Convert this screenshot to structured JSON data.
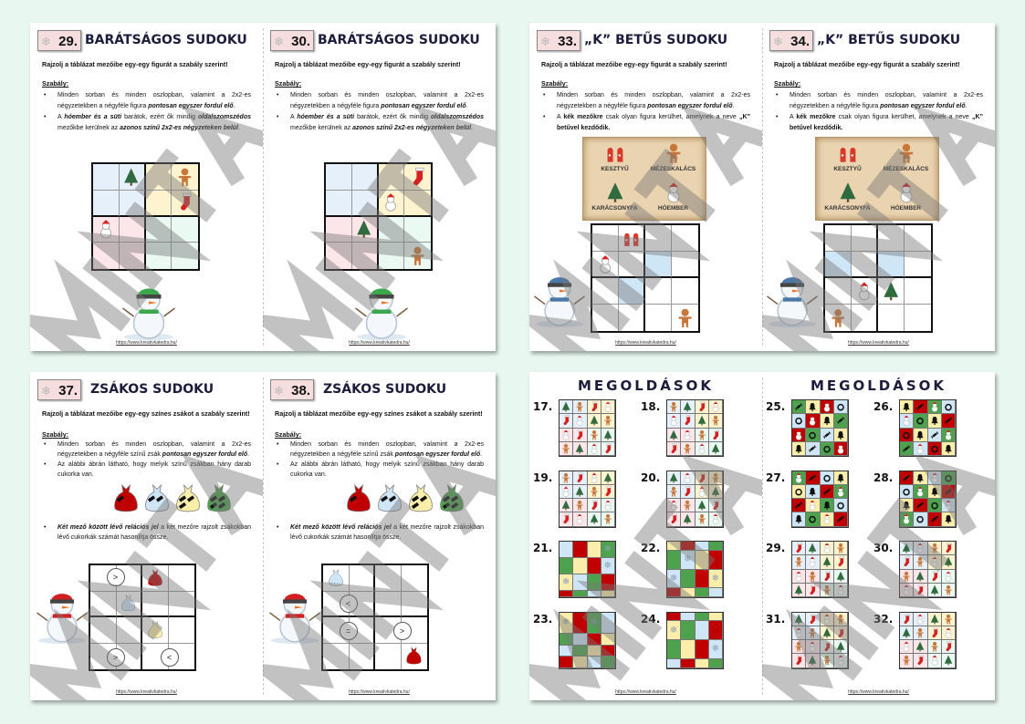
{
  "watermark": "MINTA",
  "url": "https://www.kreativkatedra.hu/",
  "colors": {
    "blue": "#cfe6f7",
    "yellow": "#fbeeaa",
    "red": "#c00000",
    "green": "#4ea24e",
    "qblue": "#e6f0fb",
    "qyellow": "#fdf3cf",
    "qpink": "#fde6ea",
    "qgreen": "#eafaf2",
    "background": "#e9f7f1"
  },
  "pages": [
    {
      "number": "29.",
      "title": "BARÁTSÁGOS SUDOKU",
      "type": "friendly",
      "intro": "Rajzolj a táblázat mezőibe egy-egy figurát a szabály szerint!",
      "rule_heading": "Szabály:",
      "bullets": [
        [
          {
            "t": "Minden sorban és minden oszlopban, valamint a 2x2-es négyzetekben a négyféle figura "
          },
          {
            "t": "pontosan egyszer fordul elő",
            "b": 1,
            "i": 1
          },
          {
            "t": "."
          }
        ],
        [
          {
            "t": "A "
          },
          {
            "t": "hóember és a süti",
            "b": 1,
            "i": 1
          },
          {
            "t": " barátok, ezért ők mindig "
          },
          {
            "t": "oldalszomszédos",
            "b": 1,
            "i": 1
          },
          {
            "t": " mezőkbe kerülnek az "
          },
          {
            "t": "azonos színű 2x2-es négyzeteken belül",
            "b": 1,
            "i": 1
          },
          {
            "t": "."
          }
        ]
      ],
      "cells": [
        "",
        "tree",
        "",
        "gingerbread",
        "",
        "",
        "",
        "stocking",
        "snowman",
        "",
        "",
        "",
        "",
        "",
        "",
        ""
      ]
    },
    {
      "number": "30.",
      "title": "BARÁTSÁGOS SUDOKU",
      "type": "friendly",
      "intro": "Rajzolj a táblázat mezőibe egy-egy figurát a szabály szerint!",
      "rule_heading": "Szabály:",
      "bullets": [
        [
          {
            "t": "Minden sorban és minden oszlopban, valamint a 2x2-es négyzetekben a négyféle figura "
          },
          {
            "t": "pontosan egyszer fordul elő",
            "b": 1,
            "i": 1
          },
          {
            "t": "."
          }
        ],
        [
          {
            "t": "A "
          },
          {
            "t": "hóember és a süti",
            "b": 1,
            "i": 1
          },
          {
            "t": " barátok, ezért ők mindig "
          },
          {
            "t": "oldalszomszédos",
            "b": 1,
            "i": 1
          },
          {
            "t": " mezőkbe kerülnek az "
          },
          {
            "t": "azonos színű 2x2-es négyzeteken belül",
            "b": 1,
            "i": 1
          },
          {
            "t": "."
          }
        ]
      ],
      "cells": [
        "",
        "",
        "",
        "stocking",
        "",
        "",
        "snowman",
        "",
        "",
        "tree",
        "",
        "",
        "",
        "",
        "",
        "gingerbread"
      ]
    },
    {
      "number": "33.",
      "title": "„K” BETŰS SUDOKU",
      "type": "k",
      "intro": "Rajzolj a táblázat mezőibe egy-egy figurát a szabály szerint!",
      "rule_heading": "Szabály:",
      "bullets": [
        [
          {
            "t": "Minden sorban és minden oszlopban, valamint a 2x2-es négyzetekben a négyféle figura "
          },
          {
            "t": "pontosan egyszer fordul elő",
            "b": 1,
            "i": 1
          },
          {
            "t": "."
          }
        ],
        [
          {
            "t": "A "
          },
          {
            "t": "kék mezőkre",
            "b": 1
          },
          {
            "t": " csak olyan figura kerülhet, amelynek a neve "
          },
          {
            "t": "„K”",
            "b": 1
          },
          {
            "t": " "
          },
          {
            "t": "betűvel kezdődik.",
            "b": 1
          }
        ]
      ],
      "legend": [
        {
          "icon": "mitten",
          "label": "KESZTYŰ"
        },
        {
          "icon": "gingerbread",
          "label": "MÉZESKALÁCS"
        },
        {
          "icon": "tree",
          "label": "KARÁCSONYFA"
        },
        {
          "icon": "snowman",
          "label": "HÓEMBER"
        }
      ],
      "blue_cells": [
        6,
        9
      ],
      "cells": [
        "",
        "mitten",
        "",
        "",
        "snowman",
        "",
        "",
        "",
        "",
        "",
        "",
        "",
        "",
        "",
        "",
        "gingerbread"
      ]
    },
    {
      "number": "34.",
      "title": "„K” BETŰS SUDOKU",
      "type": "k",
      "intro": "Rajzolj a táblázat mezőibe egy-egy figurát a szabály szerint!",
      "rule_heading": "Szabály:",
      "bullets": [
        [
          {
            "t": "Minden sorban és minden oszlopban, valamint a 2x2-es négyzetekben a négyféle figura "
          },
          {
            "t": "pontosan egyszer fordul elő",
            "b": 1,
            "i": 1
          },
          {
            "t": "."
          }
        ],
        [
          {
            "t": "A "
          },
          {
            "t": "kék mezőkre",
            "b": 1
          },
          {
            "t": " csak olyan figura kerülhet, amelynek a neve "
          },
          {
            "t": "„K”",
            "b": 1
          },
          {
            "t": " "
          },
          {
            "t": "betűvel kezdődik.",
            "b": 1
          }
        ]
      ],
      "legend": [
        {
          "icon": "mitten",
          "label": "KESZTYŰ"
        },
        {
          "icon": "gingerbread",
          "label": "MÉZESKALÁCS"
        },
        {
          "icon": "tree",
          "label": "KARÁCSONYFA"
        },
        {
          "icon": "snowman",
          "label": "HÓEMBER"
        }
      ],
      "blue_cells": [
        4,
        6
      ],
      "cells": [
        "",
        "",
        "",
        "",
        "",
        "",
        "",
        "",
        "",
        "snowman",
        "tree",
        "",
        "gingerbread",
        "",
        "",
        ""
      ]
    },
    {
      "number": "37.",
      "title": "ZSÁKOS SUDOKU",
      "type": "bags",
      "intro": "Rajzolj a táblázat mezőibe egy-egy színes zsákot a szabály szerint!",
      "rule_heading": "Szabály:",
      "bullets": [
        [
          {
            "t": "Minden sorban és minden oszlopban, valamint a 2x2-es négyzetekben a négyféle színű zsák "
          },
          {
            "t": "pontosan egyszer fordul elő",
            "b": 1,
            "i": 1
          },
          {
            "t": "."
          }
        ],
        [
          {
            "t": "Az alábbi ábrán látható, hogy melyik színű zsákban hány darab cukorka van."
          }
        ],
        [
          {
            "t": "Két mező között lévő relációs jel",
            "b": 1,
            "i": 1
          },
          {
            "t": " a két mezőre rajzolt zsákokban lévő cukorkák számát hasonlítja össze."
          }
        ]
      ],
      "bag_counts": [
        {
          "color": "red",
          "candies": 1
        },
        {
          "color": "blue",
          "candies": 2
        },
        {
          "color": "yellow",
          "candies": 3
        },
        {
          "color": "green",
          "candies": 4
        }
      ],
      "cells": [
        "",
        "",
        "bag-red",
        "",
        "",
        "bag-blue",
        "",
        "",
        "",
        "",
        "bag-yellow",
        "",
        "",
        "",
        "",
        ""
      ],
      "relations": [
        {
          "row": 0,
          "between_cols": [
            0,
            1
          ],
          "sign": ">"
        },
        {
          "row": 3,
          "between_cols": [
            0,
            1
          ],
          "sign": ">"
        },
        {
          "row": 3,
          "between_cols": [
            2,
            3
          ],
          "sign": "<"
        }
      ]
    },
    {
      "number": "38.",
      "title": "ZSÁKOS SUDOKU",
      "type": "bags",
      "intro": "Rajzolj a táblázat mezőibe egy-egy színes zsákot a szabály szerint!",
      "rule_heading": "Szabály:",
      "bullets": [
        [
          {
            "t": "Minden sorban és minden oszlopban, valamint a 2x2-es négyzetekben a négyféle színű zsák "
          },
          {
            "t": "pontosan egyszer fordul elő",
            "b": 1,
            "i": 1
          },
          {
            "t": "."
          }
        ],
        [
          {
            "t": "Az alábbi ábrán látható, hogy melyik színű zsákban hány darab cukorka van."
          }
        ],
        [
          {
            "t": "Két mező között lévő relációs jel",
            "b": 1,
            "i": 1
          },
          {
            "t": " a két mezőre rajzolt zsákokban lévő cukorkák számát hasonlítja össze."
          }
        ]
      ],
      "bag_counts": [
        {
          "color": "red",
          "candies": 1
        },
        {
          "color": "blue",
          "candies": 2
        },
        {
          "color": "yellow",
          "candies": 3
        },
        {
          "color": "green",
          "candies": 4
        }
      ],
      "cells": [
        "bag-blue",
        "",
        "",
        "",
        "",
        "",
        "",
        "",
        "",
        "",
        "",
        "",
        "",
        "",
        "",
        "bag-red"
      ],
      "relations": [
        {
          "row": 1,
          "between_cols": [
            0,
            1
          ],
          "sign": "<"
        },
        {
          "row": 2,
          "between_cols": [
            0,
            1
          ],
          "sign": "="
        },
        {
          "row": 2,
          "between_cols": [
            2,
            3
          ],
          "sign": ">"
        }
      ]
    }
  ],
  "solutions": [
    {
      "title": "MEGOLDÁSOK",
      "items": [
        {
          "label": "17.",
          "kind": "quad",
          "cells": [
            "tree",
            "gingerbread",
            "stocking",
            "snowman",
            "stocking",
            "snowman",
            "tree",
            "gingerbread",
            "snowman",
            "stocking",
            "gingerbread",
            "tree",
            "gingerbread",
            "tree",
            "snowman",
            "stocking"
          ]
        },
        {
          "label": "18.",
          "kind": "quad",
          "cells": [
            "gingerbread",
            "tree",
            "stocking",
            "snowman",
            "snowman",
            "stocking",
            "tree",
            "gingerbread",
            "tree",
            "snowman",
            "gingerbread",
            "stocking",
            "stocking",
            "gingerbread",
            "snowman",
            "tree"
          ]
        },
        {
          "label": "19.",
          "kind": "quad",
          "cells": [
            "gingerbread",
            "stocking",
            "snowman",
            "tree",
            "snowman",
            "tree",
            "gingerbread",
            "stocking",
            "tree",
            "gingerbread",
            "stocking",
            "snowman",
            "stocking",
            "snowman",
            "tree",
            "gingerbread"
          ]
        },
        {
          "label": "20.",
          "kind": "quad",
          "cells": [
            "tree",
            "snowman",
            "stocking",
            "gingerbread",
            "gingerbread",
            "stocking",
            "snowman",
            "tree",
            "snowman",
            "gingerbread",
            "tree",
            "stocking",
            "stocking",
            "tree",
            "gingerbread",
            "snowman"
          ]
        },
        {
          "label": "21.",
          "kind": "color",
          "colors": [
            "blue",
            "red",
            "yellow",
            "green",
            "green",
            "yellow",
            "red",
            "blue",
            "yellow",
            "blue",
            "green",
            "red",
            "red",
            "green",
            "blue",
            "yellow"
          ],
          "flakes": [
            3,
            7,
            8
          ]
        },
        {
          "label": "22.",
          "kind": "color",
          "colors": [
            "yellow",
            "red",
            "blue",
            "green",
            "green",
            "blue",
            "yellow",
            "red",
            "blue",
            "green",
            "red",
            "yellow",
            "red",
            "yellow",
            "green",
            "blue"
          ],
          "flakes": [
            5,
            8,
            11
          ]
        },
        {
          "label": "23.",
          "kind": "color",
          "colors": [
            "yellow",
            "red",
            "green",
            "blue",
            "green",
            "blue",
            "red",
            "yellow",
            "blue",
            "green",
            "yellow",
            "red",
            "red",
            "yellow",
            "blue",
            "green"
          ],
          "flakes": [
            0,
            2
          ]
        },
        {
          "label": "24.",
          "kind": "color",
          "colors": [
            "red",
            "blue",
            "green",
            "yellow",
            "yellow",
            "green",
            "blue",
            "red",
            "green",
            "yellow",
            "red",
            "blue",
            "blue",
            "red",
            "yellow",
            "green"
          ],
          "flakes": [
            4,
            11
          ]
        }
      ]
    },
    {
      "title": "MEGOLDÁSOK",
      "items": [
        {
          "label": "25.",
          "kind": "coloricon",
          "colors": [
            "green",
            "yellow",
            "red",
            "blue",
            "blue",
            "red",
            "yellow",
            "green",
            "red",
            "green",
            "blue",
            "yellow",
            "yellow",
            "blue",
            "green",
            "red"
          ],
          "cells": [
            "candy",
            "bell",
            "snowman",
            "wreath",
            "wreath",
            "snowman",
            "bell",
            "candy",
            "snowman",
            "wreath",
            "candy",
            "bell",
            "bell",
            "candy",
            "wreath",
            "snowman"
          ]
        },
        {
          "label": "26.",
          "kind": "coloricon",
          "colors": [
            "yellow",
            "red",
            "green",
            "blue",
            "blue",
            "green",
            "yellow",
            "red",
            "red",
            "yellow",
            "blue",
            "green",
            "green",
            "blue",
            "red",
            "yellow"
          ],
          "cells": [
            "bell",
            "candy",
            "snowman",
            "wreath",
            "snowman",
            "wreath",
            "bell",
            "candy",
            "wreath",
            "bell",
            "candy",
            "snowman",
            "candy",
            "snowman",
            "wreath",
            "bell"
          ]
        },
        {
          "label": "27.",
          "kind": "coloricon",
          "colors": [
            "green",
            "red",
            "blue",
            "yellow",
            "yellow",
            "blue",
            "red",
            "green",
            "red",
            "yellow",
            "green",
            "blue",
            "blue",
            "green",
            "yellow",
            "red"
          ],
          "cells": [
            "snowman",
            "candy",
            "wreath",
            "bell",
            "wreath",
            "bell",
            "candy",
            "snowman",
            "candy",
            "snowman",
            "bell",
            "wreath",
            "bell",
            "wreath",
            "snowman",
            "candy"
          ]
        },
        {
          "label": "28.",
          "kind": "coloricon",
          "colors": [
            "red",
            "yellow",
            "blue",
            "green",
            "blue",
            "green",
            "yellow",
            "red",
            "yellow",
            "red",
            "green",
            "blue",
            "green",
            "blue",
            "red",
            "yellow"
          ],
          "cells": [
            "candy",
            "bell",
            "snowman",
            "wreath",
            "wreath",
            "snowman",
            "bell",
            "candy",
            "bell",
            "candy",
            "wreath",
            "snowman",
            "snowman",
            "wreath",
            "candy",
            "bell"
          ]
        },
        {
          "label": "29.",
          "kind": "quad",
          "cells": [
            "stocking",
            "tree",
            "snowman",
            "gingerbread",
            "gingerbread",
            "snowman",
            "tree",
            "stocking",
            "snowman",
            "gingerbread",
            "stocking",
            "tree",
            "tree",
            "stocking",
            "gingerbread",
            "snowman"
          ]
        },
        {
          "label": "30.",
          "kind": "quad",
          "cells": [
            "tree",
            "snowman",
            "gingerbread",
            "stocking",
            "stocking",
            "gingerbread",
            "snowman",
            "tree",
            "gingerbread",
            "tree",
            "stocking",
            "snowman",
            "snowman",
            "stocking",
            "tree",
            "gingerbread"
          ]
        },
        {
          "label": "31.",
          "kind": "quad",
          "cells": [
            "tree",
            "stocking",
            "snowman",
            "gingerbread",
            "snowman",
            "gingerbread",
            "tree",
            "stocking",
            "gingerbread",
            "snowman",
            "stocking",
            "tree",
            "stocking",
            "tree",
            "gingerbread",
            "snowman"
          ]
        },
        {
          "label": "32.",
          "kind": "quad",
          "cells": [
            "stocking",
            "snowman",
            "tree",
            "gingerbread",
            "tree",
            "gingerbread",
            "stocking",
            "snowman",
            "snowman",
            "tree",
            "gingerbread",
            "stocking",
            "gingerbread",
            "stocking",
            "snowman",
            "tree"
          ]
        }
      ]
    }
  ]
}
